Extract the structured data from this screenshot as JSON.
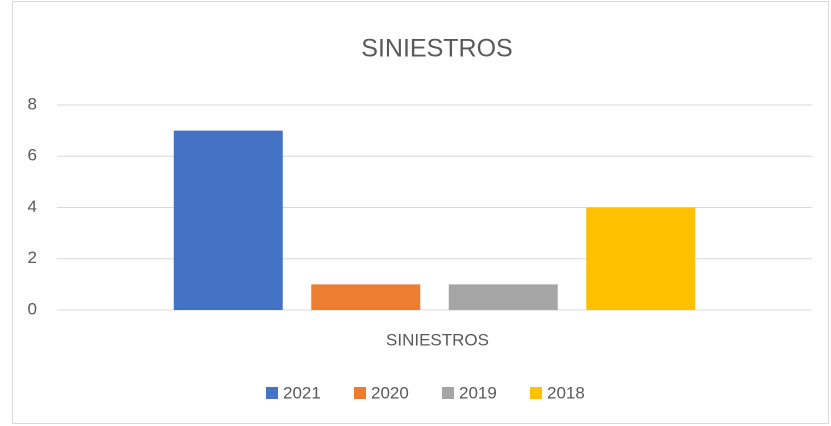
{
  "chart_data": {
    "type": "bar",
    "title": "SINIESTROS",
    "categories": [
      "SINIESTROS"
    ],
    "series": [
      {
        "name": "2021",
        "color": "#4472c4",
        "values": [
          7
        ]
      },
      {
        "name": "2020",
        "color": "#ed7d31",
        "values": [
          1
        ]
      },
      {
        "name": "2019",
        "color": "#a5a5a5",
        "values": [
          1
        ]
      },
      {
        "name": "2018",
        "color": "#ffc000",
        "values": [
          4
        ]
      }
    ],
    "ylim": [
      0,
      8
    ],
    "yticks": [
      0,
      2,
      4,
      6,
      8
    ],
    "grid": true,
    "legend": "bottom"
  }
}
